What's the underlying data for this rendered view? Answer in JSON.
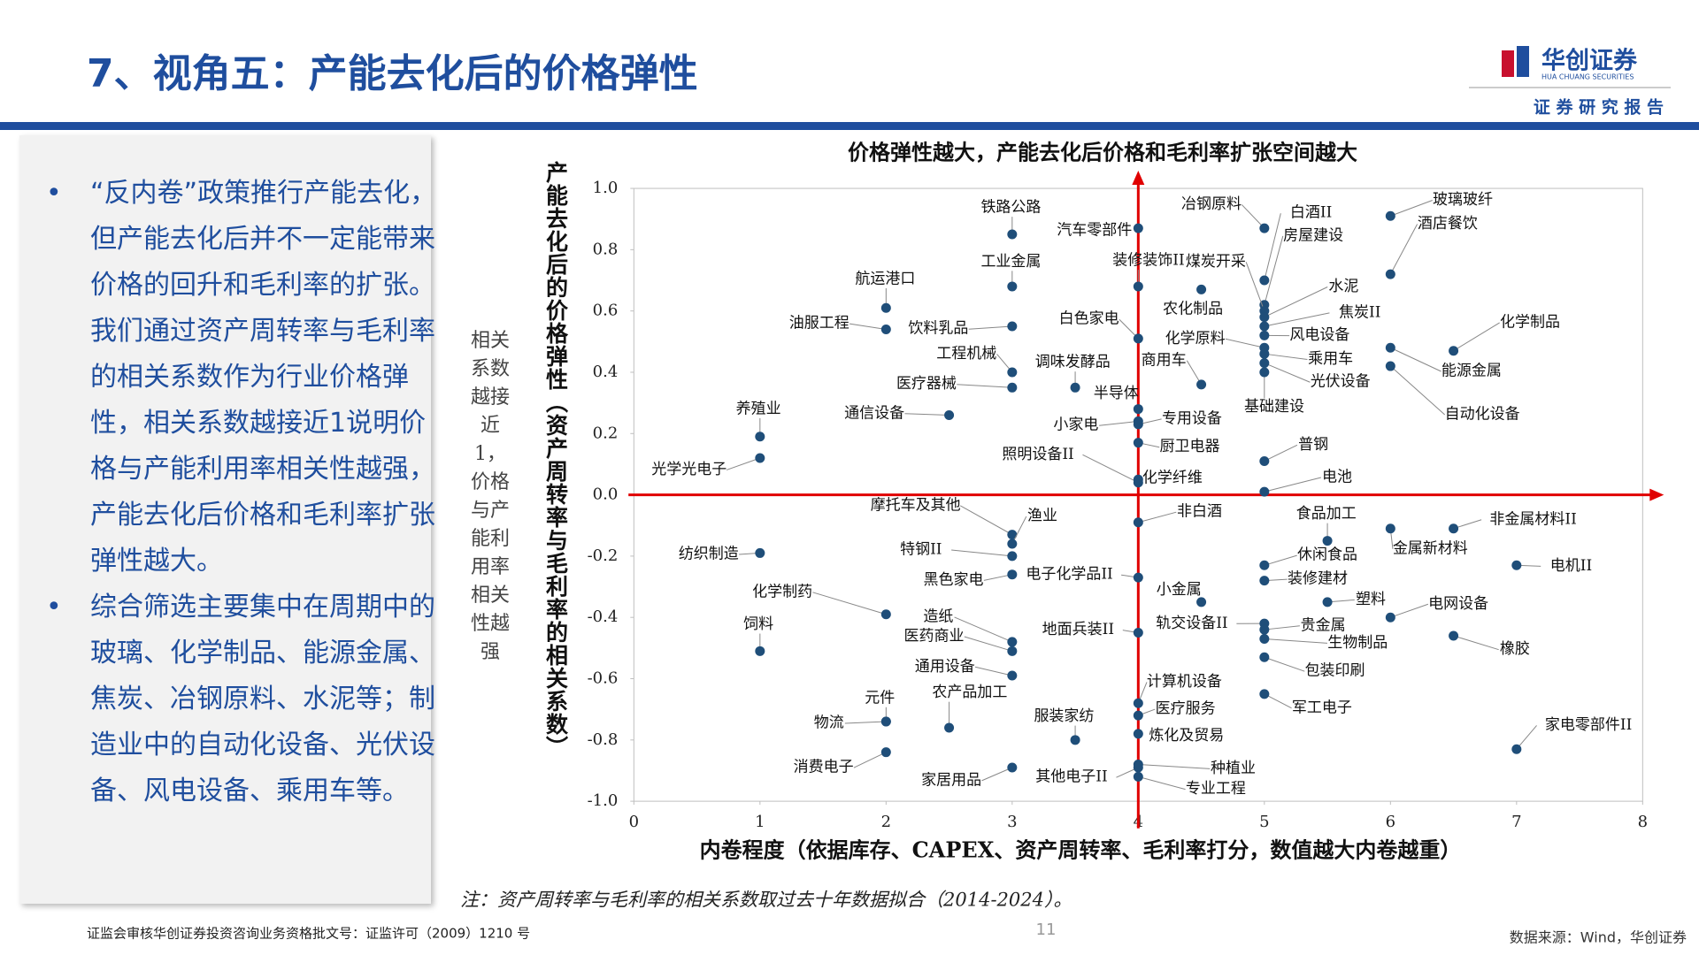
{
  "header": {
    "title": "7、视角五：产能去化后的价格弹性",
    "logo_cn": "华创证券",
    "logo_en": "HUA CHUANG SECURITIES",
    "report_type": "证 券 研 究 报 告"
  },
  "panel": {
    "bullets": [
      "“反内卷”政策推行产能去化，但产能去化后并不一定能带来价格的回升和毛利率的扩张。我们通过资产周转率与毛利率的相关系数作为行业价格弹性，相关系数越接近1说明价格与产能利用率相关性越强，产能去化后价格和毛利率扩张弹性越大。",
      "综合筛选主要集中在周期中的玻璃、化学制品、能源金属、焦炭、冶钢原料、水泥等；制造业中的自动化设备、光伏设备、风电设备、乘用车等。"
    ]
  },
  "chart_data": {
    "type": "scatter",
    "title": "价格弹性越大，产能去化后价格和毛利率扩张空间越大",
    "ylabel": "产能去化后的价格弹性（资产周转率与毛利率的相关系数）",
    "xlabel": "内卷程度（依据库存、CAPEX、资产周转率、毛利率打分，数值越大内卷越重）",
    "annotation": "相关系数越接近1，价格与产能利用率相关性越强",
    "color": "#1f4e79",
    "reference_lines": [
      {
        "axis": "x",
        "value": 4
      },
      {
        "axis": "y",
        "value": 0
      }
    ],
    "reference_color": "#e00000",
    "grid": false,
    "xlim": [
      0,
      8
    ],
    "xticks": [
      0,
      1,
      2,
      3,
      4,
      5,
      6,
      7,
      8
    ],
    "ylim": [
      -1,
      1
    ],
    "yticks": [
      {
        "value": -1,
        "label": "-1.0"
      },
      -0.8,
      -0.6,
      -0.4,
      -0.2,
      {
        "value": 0,
        "label": "0.0"
      },
      0.2,
      0.4,
      0.6,
      0.8,
      {
        "value": 1,
        "label": "1.0"
      }
    ],
    "labels": [
      "铁路公路",
      "汽车零部件",
      "冶钢原料",
      "白酒II",
      "房屋建设",
      "玻璃玻纤",
      "酒店餐饮",
      "工业金属",
      "装修装饰II",
      "煤炭开采",
      "水泥",
      "农化制品",
      "白色家电",
      "焦炭II",
      "航运港口",
      "油服工程",
      "饮料乳品",
      "风电设备",
      "化学原料",
      "化学制品",
      "工程机械",
      "乘用车",
      "商用车",
      "能源金属",
      "调味发酵品",
      "医疗器械",
      "光伏设备",
      "半导体",
      "养殖业",
      "通信设备",
      "基础建设",
      "自动化设备",
      "小家电",
      "专用设备",
      "厨卫电器",
      "普钢",
      "照明设备II",
      "化学纤维",
      "光学光电子",
      "电池",
      "摩托车及其他",
      "非白酒",
      "渔业",
      "食品加工",
      "非金属材料II",
      "金属新材料",
      "纺织制造",
      "特钢II",
      "休闲食品",
      "电机II",
      "电子化学品II",
      "黑色家电",
      "装修建材",
      "小金属",
      "化学制药",
      "塑料",
      "电网设备",
      "饲料",
      "造纸",
      "轨交设备II",
      "贵金属",
      "地面兵装II",
      "医药商业",
      "生物制品",
      "橡胶",
      "通用设备",
      "包装印刷",
      "计算机设备",
      "元件",
      "农产品加工",
      "军工电子",
      "医疗服务",
      "服装家纺",
      "物流",
      "家电零部件II",
      "炼化及贸易",
      "消费电子",
      "种植业",
      "家居用品",
      "其他电子II",
      "专业工程"
    ],
    "x": [
      3,
      4,
      5,
      5,
      5,
      6,
      6,
      3,
      4,
      5,
      5,
      4.5,
      4,
      5,
      2,
      2,
      3,
      5,
      5,
      6.5,
      3,
      5,
      4.5,
      6,
      3.5,
      3,
      5,
      4,
      1,
      2.5,
      5,
      6,
      4,
      4,
      4,
      5,
      4,
      4,
      1,
      5,
      3,
      4,
      3,
      5.5,
      6.5,
      6,
      1,
      3,
      5,
      7,
      4,
      3,
      5,
      4.5,
      2,
      5.5,
      6,
      1,
      3,
      5,
      5,
      4,
      3,
      5,
      6.5,
      3,
      5,
      4,
      2,
      2.5,
      5,
      4,
      3.5,
      2,
      7,
      4,
      2,
      4,
      3,
      4,
      4
    ],
    "values": [
      0.85,
      0.87,
      0.87,
      0.7,
      0.62,
      0.91,
      0.72,
      0.68,
      0.68,
      0.6,
      0.58,
      0.67,
      0.51,
      0.55,
      0.61,
      0.54,
      0.55,
      0.52,
      0.48,
      0.47,
      0.4,
      0.46,
      0.36,
      0.48,
      0.35,
      0.35,
      0.43,
      0.28,
      0.19,
      0.26,
      0.4,
      0.42,
      0.24,
      0.23,
      0.17,
      0.11,
      0.04,
      0.05,
      0.12,
      0.01,
      -0.13,
      -0.09,
      -0.16,
      -0.15,
      -0.11,
      -0.11,
      -0.19,
      -0.2,
      -0.23,
      -0.23,
      -0.27,
      -0.26,
      -0.28,
      -0.35,
      -0.39,
      -0.35,
      -0.4,
      -0.51,
      -0.48,
      -0.42,
      -0.44,
      -0.45,
      -0.51,
      -0.47,
      -0.46,
      -0.59,
      -0.53,
      -0.68,
      -0.74,
      -0.76,
      -0.65,
      -0.72,
      -0.8,
      -0.74,
      -0.83,
      -0.78,
      -0.84,
      -0.88,
      -0.89,
      -0.89,
      -0.92
    ]
  },
  "footer": {
    "note": "注：资产周转率与毛利率的相关系数取过去十年数据拟合（2014-2024）。",
    "page": 11,
    "license": "证监会审核华创证券投资咨询业务资格批文号：证监许可（2009）1210 号",
    "source": "数据来源：Wind，华创证券"
  }
}
